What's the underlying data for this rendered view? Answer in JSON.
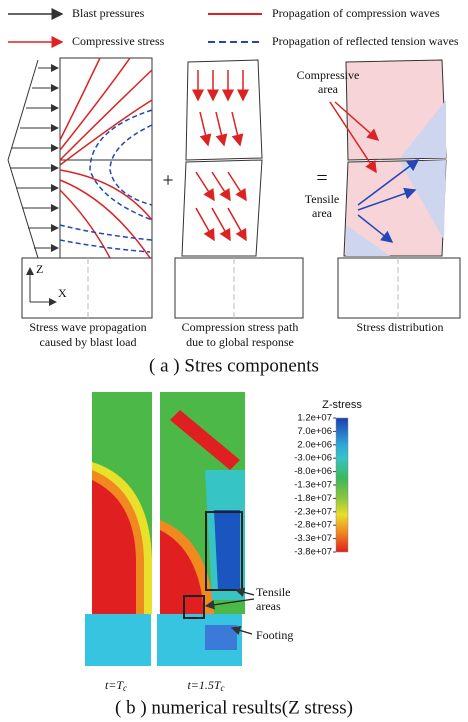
{
  "legend": {
    "items": [
      "Blast pressures",
      "Propagation of compression waves",
      "Compressive stress",
      "Propagation of reflected tension waves"
    ]
  },
  "part_a": {
    "operators": [
      "+",
      "="
    ],
    "axes": {
      "z": "Z",
      "x": "X"
    },
    "annotations": {
      "compressive_area": [
        "Compressive",
        "area"
      ],
      "tensile_area": [
        "Tensile",
        "area"
      ]
    },
    "panel_captions": [
      [
        "Stress wave propagation",
        "caused by blast load"
      ],
      [
        "Compression stress path",
        "due to global response"
      ],
      [
        "Stress distribution"
      ]
    ],
    "caption": "( a ) Stres components"
  },
  "part_b": {
    "colorbar": {
      "title": "Z-stress",
      "labels": [
        "1.2e+07",
        "7.0e+06",
        "2.0e+06",
        "-3.0e+06",
        "-8.0e+06",
        "-1.3e+07",
        "-1.8e+07",
        "-2.3e+07",
        "-2.8e+07",
        "-3.3e+07",
        "-3.8e+07"
      ]
    },
    "annotations": {
      "tensile_areas": [
        "Tensile",
        "areas"
      ],
      "footing": "Footing"
    },
    "time_labels": [
      {
        "main": "t=T",
        "sub": "c"
      },
      {
        "main": "t=1.5T",
        "sub": "c"
      }
    ],
    "caption": "( b ) numerical results(Z stress)"
  }
}
